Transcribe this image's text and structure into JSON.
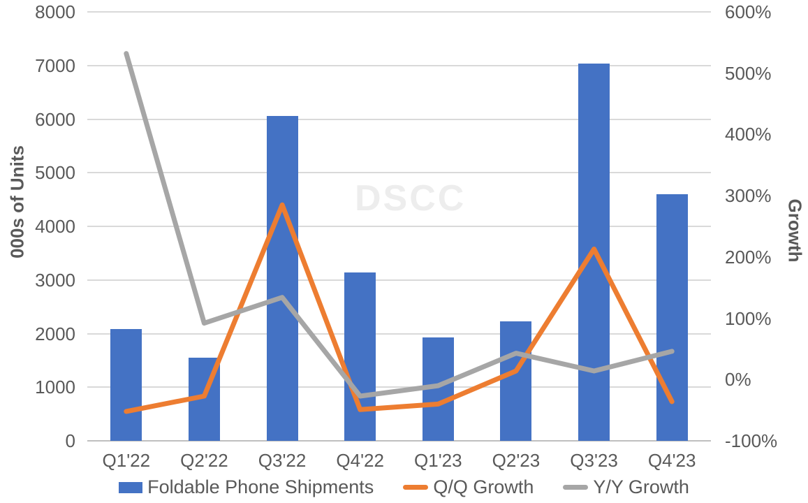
{
  "chart_data": {
    "type": "bar+line",
    "title": "",
    "watermark": "DSCC",
    "categories": [
      "Q1'22",
      "Q2'22",
      "Q3'22",
      "Q4'22",
      "Q1'23",
      "Q2'23",
      "Q3'23",
      "Q4'23"
    ],
    "series": [
      {
        "name": "Foldable Phone Shipments",
        "type": "bar",
        "axis": "left",
        "color": "#4472C4",
        "values": [
          2080,
          1550,
          6060,
          3140,
          1930,
          2230,
          7040,
          4600
        ]
      },
      {
        "name": "Q/Q Growth",
        "type": "line",
        "axis": "right",
        "color": "#ED7D31",
        "values_pct": [
          -52,
          -27,
          285,
          -49,
          -40,
          14,
          213,
          -36
        ]
      },
      {
        "name": "Y/Y Growth",
        "type": "line",
        "axis": "right",
        "color": "#A6A6A6",
        "values_pct": [
          532,
          92,
          134,
          -27,
          -10,
          43,
          14,
          46
        ]
      }
    ],
    "left_axis": {
      "label": "000s of Units",
      "min": 0,
      "max": 8000,
      "tick_step": 1000,
      "ticks": [
        0,
        1000,
        2000,
        3000,
        4000,
        5000,
        6000,
        7000,
        8000
      ]
    },
    "right_axis": {
      "label": "Growth",
      "min": -100,
      "max": 600,
      "tick_step": 100,
      "ticks_pct": [
        "-100%",
        "0%",
        "100%",
        "200%",
        "300%",
        "400%",
        "500%",
        "600%"
      ]
    },
    "grid": true,
    "legend_position": "bottom"
  },
  "colors": {
    "bar_blue": "#4472C4",
    "qq_orange": "#ED7D31",
    "yy_gray": "#A6A6A6",
    "axis_text": "#595959",
    "gridline": "#D9D9D9",
    "axis_line": "#BFBFBF",
    "watermark_gray": "#EDEDED",
    "background": "#FFFFFF"
  }
}
